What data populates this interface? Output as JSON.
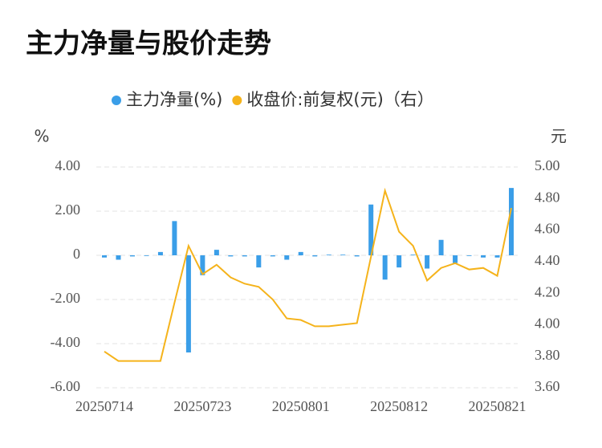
{
  "chart_data": {
    "type": "bar-line",
    "title": "主力净量与股价走势",
    "y_label": "%",
    "y2_label": "元",
    "categories": [
      "20250714",
      null,
      null,
      null,
      null,
      null,
      null,
      "20250723",
      null,
      null,
      null,
      null,
      null,
      null,
      "20250801",
      null,
      null,
      null,
      null,
      null,
      null,
      "20250812",
      null,
      null,
      null,
      null,
      null,
      null,
      "20250821",
      null
    ],
    "series": [
      {
        "name": "主力净量(%)",
        "color": "#3a9ee8",
        "type": "bar",
        "values": [
          -0.1,
          -0.2,
          -0.05,
          0,
          0.15,
          1.55,
          -4.4,
          -0.9,
          0.25,
          -0.05,
          -0.05,
          -0.55,
          -0.05,
          -0.2,
          0.15,
          -0.05,
          0.03,
          0.03,
          -0.05,
          2.3,
          -1.1,
          -0.55,
          0.03,
          -0.6,
          0.7,
          -0.35,
          -0.03,
          -0.1,
          -0.1,
          3.05
        ]
      },
      {
        "name": "收盘价:前复权(元)（右）",
        "color": "#f5b31b",
        "type": "line",
        "axis": "y2",
        "values": [
          3.83,
          3.77,
          3.77,
          3.77,
          3.77,
          4.14,
          4.5,
          4.32,
          4.38,
          4.3,
          4.26,
          4.24,
          4.16,
          4.04,
          4.03,
          3.99,
          3.99,
          4.0,
          4.01,
          4.43,
          4.85,
          4.59,
          4.5,
          4.28,
          4.36,
          4.39,
          4.35,
          4.36,
          4.31,
          4.74
        ]
      }
    ],
    "ylim": [
      -6,
      4
    ],
    "yticks": [
      {
        "value": 4,
        "label": "4.00"
      },
      {
        "value": 2,
        "label": "2.00"
      },
      0,
      {
        "value": -2,
        "label": "-2.00"
      },
      {
        "value": -4,
        "label": "-4.00"
      },
      {
        "value": -6,
        "label": "-6.00"
      }
    ],
    "y2lim": [
      3.6,
      5.0
    ],
    "y2ticks": [
      {
        "value": 5.0,
        "label": "5.00"
      },
      {
        "value": 4.8,
        "label": "4.80"
      },
      {
        "value": 4.6,
        "label": "4.60"
      },
      {
        "value": 4.4,
        "label": "4.40"
      },
      {
        "value": 4.2,
        "label": "4.20"
      },
      {
        "value": 4.0,
        "label": "4.00"
      },
      {
        "value": 3.8,
        "label": "3.80"
      },
      {
        "value": 3.6,
        "label": "3.60"
      }
    ],
    "grid": true
  }
}
